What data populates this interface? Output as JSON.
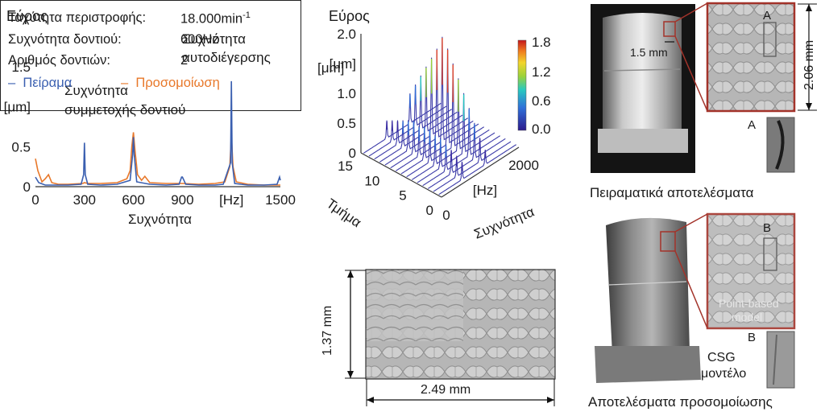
{
  "spectrum": {
    "y_title": "Εύρος",
    "y_unit": "[μm]",
    "x_title": "Συχνότητα",
    "x_unit": "[Hz]",
    "annotation_tooth": [
      "Συχνότητα",
      "συμμετοχής δοντιού"
    ],
    "annotation_self": [
      "Συχνότητα",
      "αυτοδιέγερσης"
    ]
  },
  "waterfall": {
    "z_title": "Εύρος",
    "z_unit": "[μm]",
    "segment_title": "Τμήμα",
    "freq_title": "Συχνότητα",
    "freq_unit": "[Hz]",
    "colorbar_ticks": [
      "1.8",
      "1.2",
      "0.6",
      "0.0"
    ]
  },
  "params": {
    "speed_label": "Ταχύτητα περιστροφής:",
    "speed_value": "18.000min",
    "speed_sup": "-1",
    "tooth_freq_label": "Συχνότητα δοντιού:",
    "tooth_freq_value": "600Hz",
    "teeth_label": "Αριθμός δοντιών:",
    "teeth_value": "2",
    "legend_exp": "Πείραμα",
    "legend_sim": "Προσομοίωση",
    "dash": "–"
  },
  "surface": {
    "height_label": "1.37 mm",
    "width_label": "2.49 mm"
  },
  "experiment": {
    "scale_label": "1.5 mm",
    "height_label": "2.06 mm",
    "marker_a": "A",
    "caption": "Πειραματικά αποτελέσματα"
  },
  "simulation": {
    "marker_b": "B",
    "point_model": [
      "Point-based",
      "model"
    ],
    "csg_model": [
      "CSG",
      "μοντέλο"
    ],
    "caption": "Αποτελέσματα προσομοίωσης"
  },
  "colors": {
    "experiment": "#3a5fb0",
    "simulation": "#e8782a",
    "frame_red": "#a3332a"
  },
  "chart_data": [
    {
      "type": "line",
      "xlabel": "Συχνότητα [Hz]",
      "ylabel": "Εύρος [μm]",
      "xlim": [
        0,
        1500
      ],
      "ylim": [
        0,
        1.5
      ],
      "x_ticks": [
        "0",
        "300",
        "600",
        "900",
        "[Hz]",
        "1500"
      ],
      "y_ticks": [
        "0",
        "0.5",
        "[μm]",
        "1.5"
      ],
      "series": [
        {
          "name": "Πείραμα",
          "color": "#3a5fb0",
          "points": [
            [
              0,
              0.12
            ],
            [
              20,
              0.05
            ],
            [
              60,
              0.02
            ],
            [
              120,
              0.02
            ],
            [
              200,
              0.02
            ],
            [
              280,
              0.03
            ],
            [
              295,
              0.15
            ],
            [
              300,
              0.55
            ],
            [
              305,
              0.15
            ],
            [
              320,
              0.03
            ],
            [
              400,
              0.02
            ],
            [
              500,
              0.03
            ],
            [
              580,
              0.08
            ],
            [
              595,
              0.4
            ],
            [
              600,
              0.62
            ],
            [
              605,
              0.4
            ],
            [
              620,
              0.06
            ],
            [
              700,
              0.03
            ],
            [
              800,
              0.02
            ],
            [
              880,
              0.03
            ],
            [
              895,
              0.12
            ],
            [
              900,
              0.12
            ],
            [
              905,
              0.1
            ],
            [
              920,
              0.03
            ],
            [
              1000,
              0.02
            ],
            [
              1100,
              0.02
            ],
            [
              1150,
              0.03
            ],
            [
              1195,
              0.3
            ],
            [
              1200,
              1.32
            ],
            [
              1205,
              0.3
            ],
            [
              1220,
              0.04
            ],
            [
              1300,
              0.02
            ],
            [
              1400,
              0.02
            ],
            [
              1480,
              0.03
            ],
            [
              1495,
              0.12
            ],
            [
              1500,
              0.08
            ]
          ]
        },
        {
          "name": "Προσομοίωση",
          "color": "#e8782a",
          "points": [
            [
              0,
              0.35
            ],
            [
              15,
              0.2
            ],
            [
              40,
              0.06
            ],
            [
              60,
              0.1
            ],
            [
              80,
              0.15
            ],
            [
              100,
              0.05
            ],
            [
              140,
              0.03
            ],
            [
              200,
              0.03
            ],
            [
              290,
              0.04
            ],
            [
              300,
              0.05
            ],
            [
              320,
              0.04
            ],
            [
              400,
              0.04
            ],
            [
              500,
              0.05
            ],
            [
              560,
              0.1
            ],
            [
              580,
              0.2
            ],
            [
              590,
              0.5
            ],
            [
              600,
              0.68
            ],
            [
              610,
              0.45
            ],
            [
              625,
              0.15
            ],
            [
              650,
              0.08
            ],
            [
              670,
              0.13
            ],
            [
              700,
              0.05
            ],
            [
              800,
              0.04
            ],
            [
              900,
              0.04
            ],
            [
              1000,
              0.03
            ],
            [
              1100,
              0.04
            ],
            [
              1160,
              0.06
            ],
            [
              1190,
              0.25
            ],
            [
              1200,
              0.65
            ],
            [
              1210,
              0.25
            ],
            [
              1230,
              0.06
            ],
            [
              1300,
              0.03
            ],
            [
              1400,
              0.02
            ],
            [
              1500,
              0.02
            ]
          ]
        }
      ]
    },
    {
      "type": "area",
      "xlabel": "Συχνότητα [Hz]",
      "ylabel": "Τμήμα",
      "zlabel": "Εύρος [μm]",
      "xlim": [
        0,
        2000
      ],
      "ylim": [
        0,
        15
      ],
      "zlim": [
        0,
        2.0
      ],
      "x_ticks": [
        "0",
        "[Hz]",
        "2000"
      ],
      "y_ticks": [
        "0",
        "5",
        "10",
        "15"
      ],
      "z_ticks": [
        "0",
        "0.5",
        "1.0",
        "[μm]",
        "2.0"
      ],
      "colorbar": {
        "min": 0.0,
        "max": 1.8
      },
      "slices": [
        {
          "segment": 1,
          "peaks": [
            [
              600,
              0.3
            ],
            [
              1200,
              0.25
            ]
          ]
        },
        {
          "segment": 2,
          "peaks": [
            [
              600,
              0.35
            ],
            [
              1200,
              0.4
            ]
          ]
        },
        {
          "segment": 3,
          "peaks": [
            [
              600,
              0.4
            ],
            [
              1200,
              0.6
            ]
          ]
        },
        {
          "segment": 4,
          "peaks": [
            [
              600,
              0.45
            ],
            [
              1200,
              0.8
            ]
          ]
        },
        {
          "segment": 5,
          "peaks": [
            [
              600,
              0.5
            ],
            [
              1200,
              1.0
            ]
          ]
        },
        {
          "segment": 6,
          "peaks": [
            [
              600,
              0.5
            ],
            [
              1200,
              1.2
            ]
          ]
        },
        {
          "segment": 7,
          "peaks": [
            [
              600,
              0.55
            ],
            [
              1200,
              1.4
            ]
          ]
        },
        {
          "segment": 8,
          "peaks": [
            [
              600,
              0.55
            ],
            [
              1200,
              1.6
            ]
          ]
        },
        {
          "segment": 9,
          "peaks": [
            [
              600,
              0.5
            ],
            [
              1200,
              1.75
            ]
          ]
        },
        {
          "segment": 10,
          "peaks": [
            [
              600,
              0.55
            ],
            [
              1200,
              1.5
            ]
          ]
        },
        {
          "segment": 11,
          "peaks": [
            [
              600,
              0.5
            ],
            [
              1200,
              1.3
            ]
          ]
        },
        {
          "segment": 12,
          "peaks": [
            [
              600,
              0.45
            ],
            [
              1200,
              1.1
            ]
          ]
        },
        {
          "segment": 13,
          "peaks": [
            [
              600,
              0.4
            ],
            [
              1200,
              0.9
            ]
          ]
        },
        {
          "segment": 14,
          "peaks": [
            [
              600,
              0.35
            ],
            [
              1200,
              0.7
            ]
          ]
        },
        {
          "segment": 15,
          "peaks": [
            [
              600,
              0.3
            ],
            [
              1200,
              0.5
            ]
          ]
        }
      ]
    }
  ]
}
